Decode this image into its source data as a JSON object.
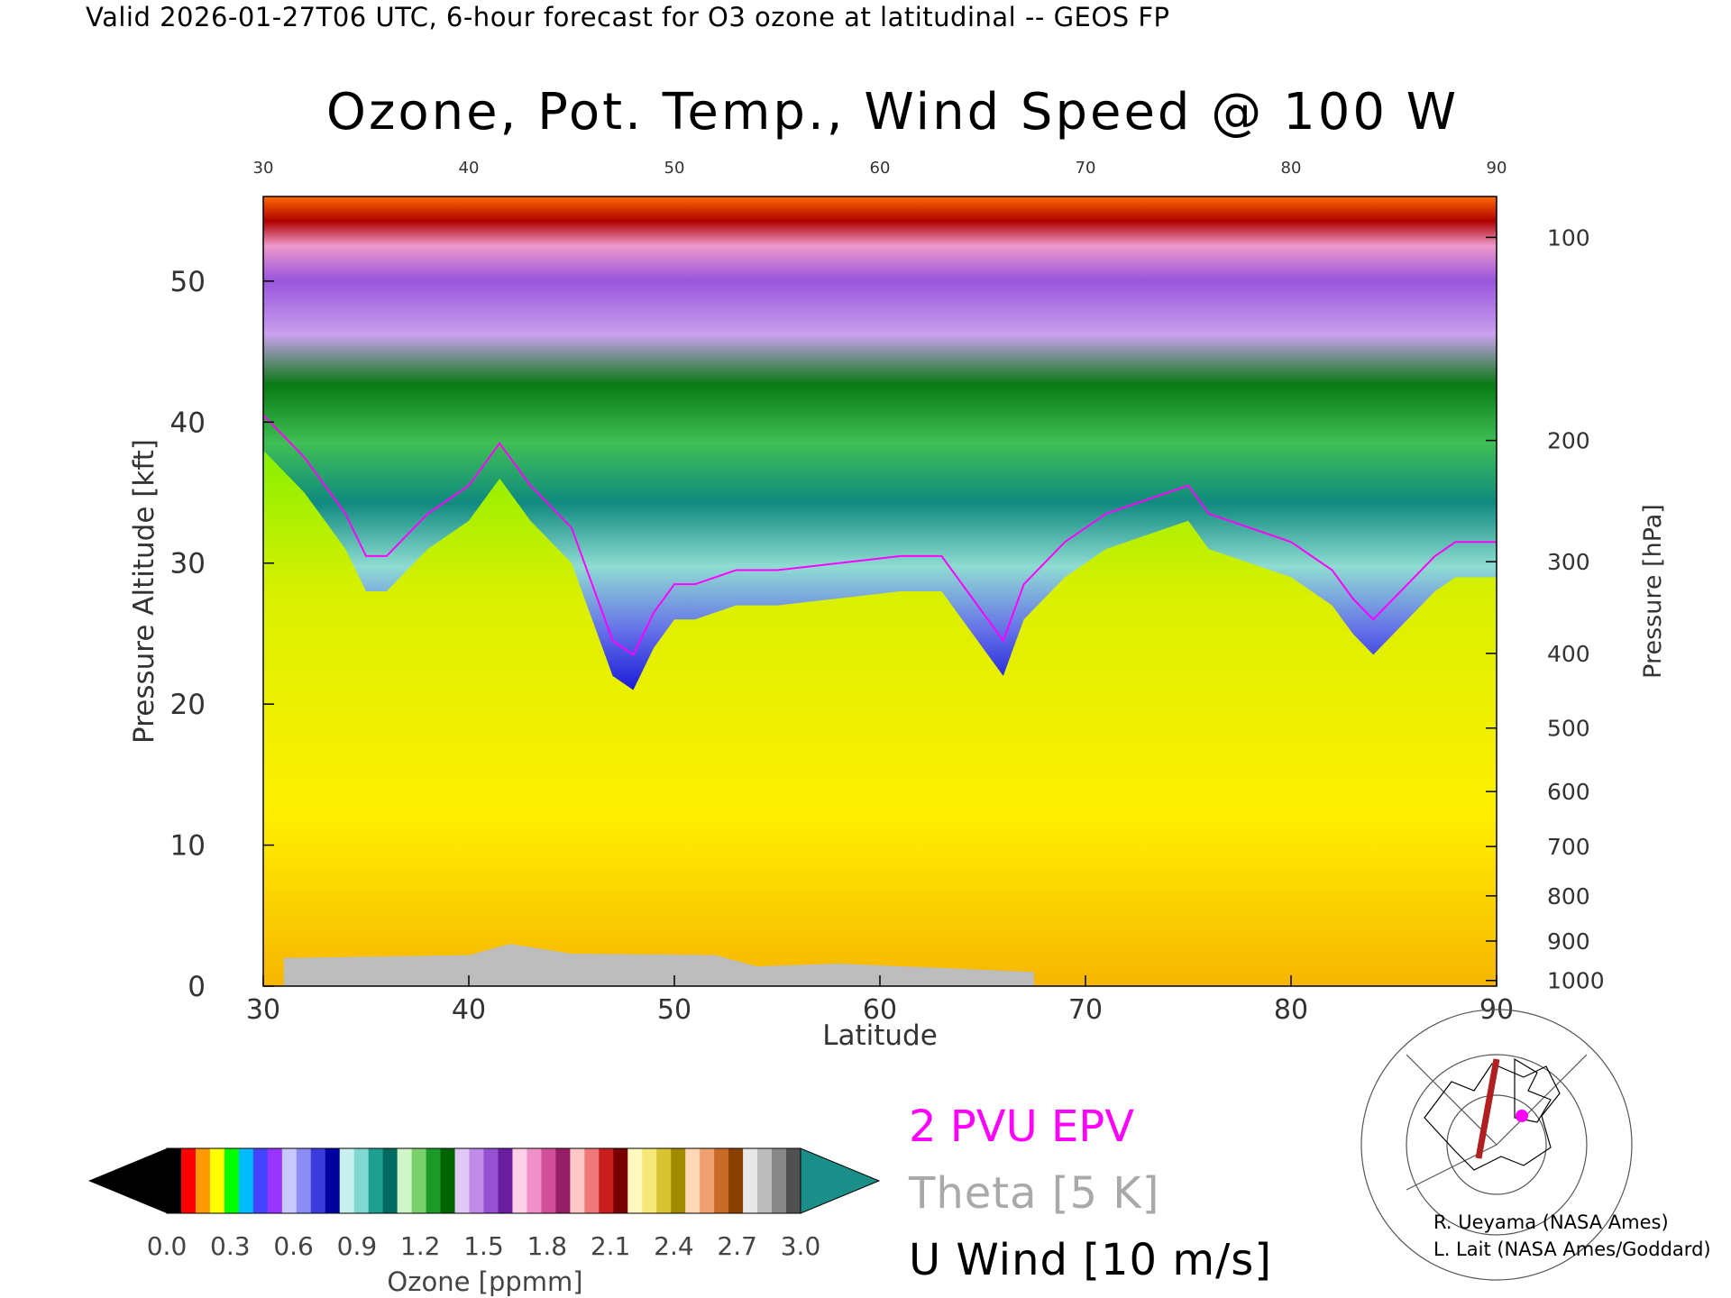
{
  "header": {
    "valid_line": "Valid 2026-01-27T06 UTC, 6-hour forecast for O3 ozone at latitudinal -- GEOS FP"
  },
  "chart_data": {
    "type": "heatmap",
    "title": "Ozone, Pot. Temp., Wind Speed @ 100 W",
    "xlabel": "Latitude",
    "ylabel_left": "Pressure Altitude [kft]",
    "ylabel_right": "Pressure [hPa]",
    "xlim": [
      30,
      90
    ],
    "ylim": [
      0,
      56
    ],
    "x_ticks": [
      30,
      40,
      50,
      60,
      70,
      80,
      90
    ],
    "y_ticks_left": [
      0,
      10,
      20,
      30,
      40,
      50
    ],
    "y_ticks_right": [
      {
        "label": "100",
        "kft": 53.1
      },
      {
        "label": "200",
        "kft": 38.7
      },
      {
        "label": "300",
        "kft": 30.1
      },
      {
        "label": "400",
        "kft": 23.6
      },
      {
        "label": "500",
        "kft": 18.3
      },
      {
        "label": "600",
        "kft": 13.8
      },
      {
        "label": "700",
        "kft": 9.9
      },
      {
        "label": "800",
        "kft": 6.4
      },
      {
        "label": "900",
        "kft": 3.2
      },
      {
        "label": "1000",
        "kft": 0.4
      }
    ],
    "tropopause_kft": [
      [
        30,
        38
      ],
      [
        32,
        35
      ],
      [
        34,
        31
      ],
      [
        35,
        28
      ],
      [
        36,
        28
      ],
      [
        38,
        31
      ],
      [
        40,
        33
      ],
      [
        41.5,
        36
      ],
      [
        43,
        33
      ],
      [
        45,
        30
      ],
      [
        46,
        26
      ],
      [
        47,
        22
      ],
      [
        48,
        21
      ],
      [
        49,
        24
      ],
      [
        50,
        26
      ],
      [
        51,
        26
      ],
      [
        53,
        27
      ],
      [
        55,
        27
      ],
      [
        58,
        27.5
      ],
      [
        61,
        28
      ],
      [
        63,
        28
      ],
      [
        65,
        24
      ],
      [
        66,
        22
      ],
      [
        67,
        26
      ],
      [
        69,
        29
      ],
      [
        71,
        31
      ],
      [
        73,
        32
      ],
      [
        75,
        33
      ],
      [
        76,
        31
      ],
      [
        78,
        30
      ],
      [
        80,
        29
      ],
      [
        82,
        27
      ],
      [
        83,
        25
      ],
      [
        84,
        23.5
      ],
      [
        85,
        25
      ],
      [
        87,
        28
      ],
      [
        88,
        29
      ],
      [
        90,
        29
      ]
    ],
    "ozone_colorbar": {
      "label": "Ozone [ppmm]",
      "min": 0.0,
      "max": 3.0,
      "tick_labels": [
        "0.0",
        "0.3",
        "0.6",
        "0.9",
        "1.2",
        "1.5",
        "1.8",
        "2.1",
        "2.4",
        "2.7",
        "3.0"
      ]
    },
    "legend": [
      {
        "label": "2 PVU EPV",
        "color": "#ff00ff"
      },
      {
        "label": "Theta [5 K]",
        "color": "#a9a9a9"
      },
      {
        "label": "U Wind [10 m/s]",
        "color": "#000000"
      }
    ]
  },
  "credits": [
    "R. Ueyama (NASA Ames)",
    "L. Lait (NASA Ames/Goddard)"
  ]
}
